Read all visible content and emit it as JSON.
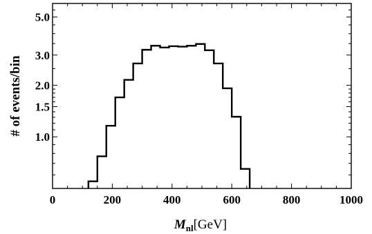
{
  "chart_data": {
    "type": "histogram",
    "xlabel_main": "M",
    "xlabel_sub": "nl",
    "xlabel_unit": "[GeV]",
    "ylabel": "# of events/bin",
    "xlim": [
      0,
      1000
    ],
    "ylim": [
      0.5,
      6.0
    ],
    "y_scale": "log",
    "grid": false,
    "x_ticks": [
      0,
      200,
      400,
      600,
      800,
      1000
    ],
    "x_tick_labels": [
      "0",
      "200",
      "400",
      "600",
      "800",
      "1000"
    ],
    "y_ticks": [
      1.0,
      1.5,
      2.0,
      3.0,
      5.0
    ],
    "y_tick_labels": [
      "1.0",
      "1.5",
      "2.0",
      "3.0",
      "5.0"
    ],
    "bin_width": 30,
    "bins": [
      {
        "x0": 120,
        "x1": 150,
        "value": 0.55
      },
      {
        "x0": 150,
        "x1": 180,
        "value": 0.77
      },
      {
        "x0": 180,
        "x1": 210,
        "value": 1.16
      },
      {
        "x0": 210,
        "x1": 240,
        "value": 1.7
      },
      {
        "x0": 240,
        "x1": 270,
        "value": 2.15
      },
      {
        "x0": 270,
        "x1": 300,
        "value": 2.68
      },
      {
        "x0": 300,
        "x1": 330,
        "value": 3.22
      },
      {
        "x0": 330,
        "x1": 360,
        "value": 3.4
      },
      {
        "x0": 360,
        "x1": 390,
        "value": 3.32
      },
      {
        "x0": 390,
        "x1": 420,
        "value": 3.38
      },
      {
        "x0": 420,
        "x1": 450,
        "value": 3.36
      },
      {
        "x0": 450,
        "x1": 480,
        "value": 3.4
      },
      {
        "x0": 480,
        "x1": 510,
        "value": 3.48
      },
      {
        "x0": 510,
        "x1": 540,
        "value": 3.2
      },
      {
        "x0": 540,
        "x1": 570,
        "value": 2.68
      },
      {
        "x0": 570,
        "x1": 600,
        "value": 1.92
      },
      {
        "x0": 600,
        "x1": 630,
        "value": 1.31
      },
      {
        "x0": 630,
        "x1": 660,
        "value": 0.65
      }
    ]
  }
}
